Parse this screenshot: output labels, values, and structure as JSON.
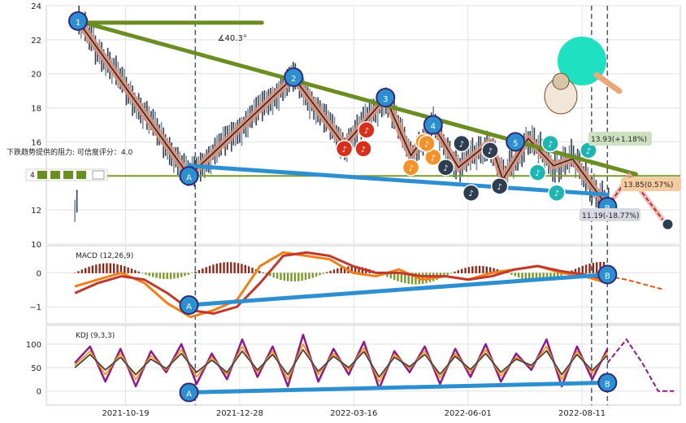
{
  "chart_data": [
    {
      "type": "line",
      "panel": "price",
      "ylim": [
        10,
        24
      ],
      "y_ticks": [
        10,
        12,
        14,
        16,
        18,
        20,
        22,
        24
      ],
      "x_tick_labels": [
        "2021-10-19",
        "2021-12-28",
        "2022-03-16",
        "2022-06-01",
        "2022-08-11"
      ],
      "angle_label": "∡40.3°",
      "resistance_label": "下跌趋势提供的阻力: 可信度评分：4.0",
      "small_axis_label": "4",
      "price_labels": [
        "13.93(+1.18%)",
        "13.85(0.57%)",
        "11.19(-18.77%)"
      ],
      "pivots": [
        {
          "label": "1",
          "x": 0.05,
          "y": 23.1
        },
        {
          "label": "A",
          "x": 0.225,
          "y": 14.0
        },
        {
          "label": "2",
          "x": 0.39,
          "y": 19.8
        },
        {
          "label": "3",
          "x": 0.535,
          "y": 18.6
        },
        {
          "label": "4",
          "x": 0.61,
          "y": 17.0
        },
        {
          "label": "5",
          "x": 0.74,
          "y": 16.0
        },
        {
          "label": "B",
          "x": 0.885,
          "y": 12.2
        }
      ],
      "trendlines": [
        {
          "name": "upper",
          "x1": 0.05,
          "y1": 23.1,
          "x2": 0.93,
          "y2": 14.1
        },
        {
          "name": "lower",
          "x1": 0.225,
          "y1": 14.6,
          "x2": 0.885,
          "y2": 12.9
        },
        {
          "name": "horizontal",
          "y": 14.0
        },
        {
          "name": "top-cap",
          "x1": 0.05,
          "x2": 0.34,
          "y": 23.0
        }
      ],
      "zigzag_y": [
        23.1,
        14.0,
        19.8,
        15.8,
        18.6,
        15.2,
        17.0,
        14.5,
        16.0,
        13.8,
        16.2,
        14.6,
        15.0,
        12.2
      ],
      "zigzag_x": [
        0.05,
        0.225,
        0.39,
        0.47,
        0.535,
        0.575,
        0.61,
        0.65,
        0.7,
        0.72,
        0.76,
        0.8,
        0.83,
        0.885
      ],
      "projection": [
        {
          "x": 0.885,
          "y": 12.2
        },
        {
          "x": 0.92,
          "y": 14.0
        },
        {
          "x": 0.975,
          "y": 11.3
        }
      ],
      "note_colors": {
        "red": "#d5301b",
        "orange": "#f0932b",
        "dark": "#2d3e50",
        "teal": "#1fb5b2"
      },
      "notes": [
        {
          "c": "red",
          "x": 0.47,
          "y": 15.6
        },
        {
          "c": "red",
          "x": 0.5,
          "y": 15.6
        },
        {
          "c": "red",
          "x": 0.505,
          "y": 16.7
        },
        {
          "c": "orange",
          "x": 0.575,
          "y": 14.5
        },
        {
          "c": "orange",
          "x": 0.595,
          "y": 16.0
        },
        {
          "c": "orange",
          "x": 0.61,
          "y": 15.1
        },
        {
          "c": "orange",
          "x": 0.6,
          "y": 15.9
        },
        {
          "c": "dark",
          "x": 0.63,
          "y": 14.5
        },
        {
          "c": "dark",
          "x": 0.655,
          "y": 15.9
        },
        {
          "c": "dark",
          "x": 0.67,
          "y": 13.0
        },
        {
          "c": "dark",
          "x": 0.7,
          "y": 15.5
        },
        {
          "c": "dark",
          "x": 0.715,
          "y": 13.4
        },
        {
          "c": "teal",
          "x": 0.775,
          "y": 14.2
        },
        {
          "c": "teal",
          "x": 0.795,
          "y": 15.9
        },
        {
          "c": "teal",
          "x": 0.805,
          "y": 13.0
        },
        {
          "c": "teal",
          "x": 0.855,
          "y": 15.5
        }
      ]
    },
    {
      "type": "line",
      "panel": "macd",
      "title": "MACD (12,26,9)",
      "ylim": [
        -1.5,
        0.8
      ],
      "y_ticks": [
        0,
        -1
      ],
      "trendline": {
        "x1": 0.225,
        "y1": -0.95,
        "x2": 0.885,
        "y2": -0.05
      },
      "pivots": [
        {
          "label": "A",
          "x": 0.225,
          "y": -0.95
        },
        {
          "label": "B",
          "x": 0.885,
          "y": -0.05
        }
      ],
      "series": [
        {
          "color": "#f07f1a",
          "values": [
            -0.4,
            -0.2,
            0.0,
            -0.3,
            -0.9,
            -1.3,
            -1.1,
            -0.8,
            0.2,
            0.6,
            0.5,
            0.4,
            0.0,
            -0.1,
            0.1,
            -0.2,
            -0.1,
            -0.2,
            0.0,
            0.1,
            0.2,
            0.0,
            -0.1,
            -0.3
          ]
        },
        {
          "color": "#c0392b",
          "values": [
            -0.6,
            -0.3,
            -0.1,
            -0.2,
            -0.6,
            -1.1,
            -1.2,
            -1.0,
            -0.3,
            0.5,
            0.6,
            0.5,
            0.2,
            0.0,
            0.0,
            -0.1,
            -0.1,
            -0.2,
            -0.1,
            0.1,
            0.2,
            0.05,
            -0.05,
            -0.2
          ]
        }
      ],
      "projection": [
        -0.2,
        -0.35,
        -0.5
      ]
    },
    {
      "type": "line",
      "panel": "kdj",
      "title": "KDJ (9,3,3)",
      "ylim": [
        -30,
        140
      ],
      "y_ticks": [
        0,
        50,
        100
      ],
      "trendline": {
        "x1": 0.225,
        "y1": -3,
        "x2": 0.885,
        "y2": 18
      },
      "pivots": [
        {
          "label": "A",
          "x": 0.225,
          "y": -3
        },
        {
          "label": "B",
          "x": 0.885,
          "y": 18
        }
      ],
      "series": [
        {
          "color": "#8b1a8b",
          "values": [
            60,
            95,
            20,
            90,
            10,
            85,
            40,
            100,
            15,
            80,
            25,
            110,
            30,
            95,
            10,
            120,
            20,
            90,
            35,
            105,
            5,
            85,
            40,
            95,
            15,
            90,
            30,
            100,
            20,
            80,
            45,
            110,
            10,
            95,
            25,
            90
          ]
        },
        {
          "color": "#f39c12",
          "values": [
            55,
            85,
            35,
            80,
            25,
            75,
            45,
            88,
            30,
            72,
            35,
            95,
            40,
            85,
            25,
            100,
            35,
            80,
            45,
            92,
            20,
            78,
            48,
            85,
            28,
            80,
            40,
            88,
            32,
            72,
            52,
            95,
            25,
            85,
            38,
            82
          ]
        },
        {
          "color": "#444444",
          "values": [
            50,
            78,
            45,
            72,
            35,
            68,
            48,
            80,
            40,
            66,
            40,
            85,
            45,
            78,
            35,
            88,
            42,
            74,
            50,
            84,
            30,
            72,
            52,
            78,
            36,
            74,
            46,
            80,
            40,
            68,
            55,
            86,
            35,
            78,
            44,
            76
          ]
        }
      ],
      "projection": [
        110,
        60,
        0,
        0
      ]
    }
  ]
}
